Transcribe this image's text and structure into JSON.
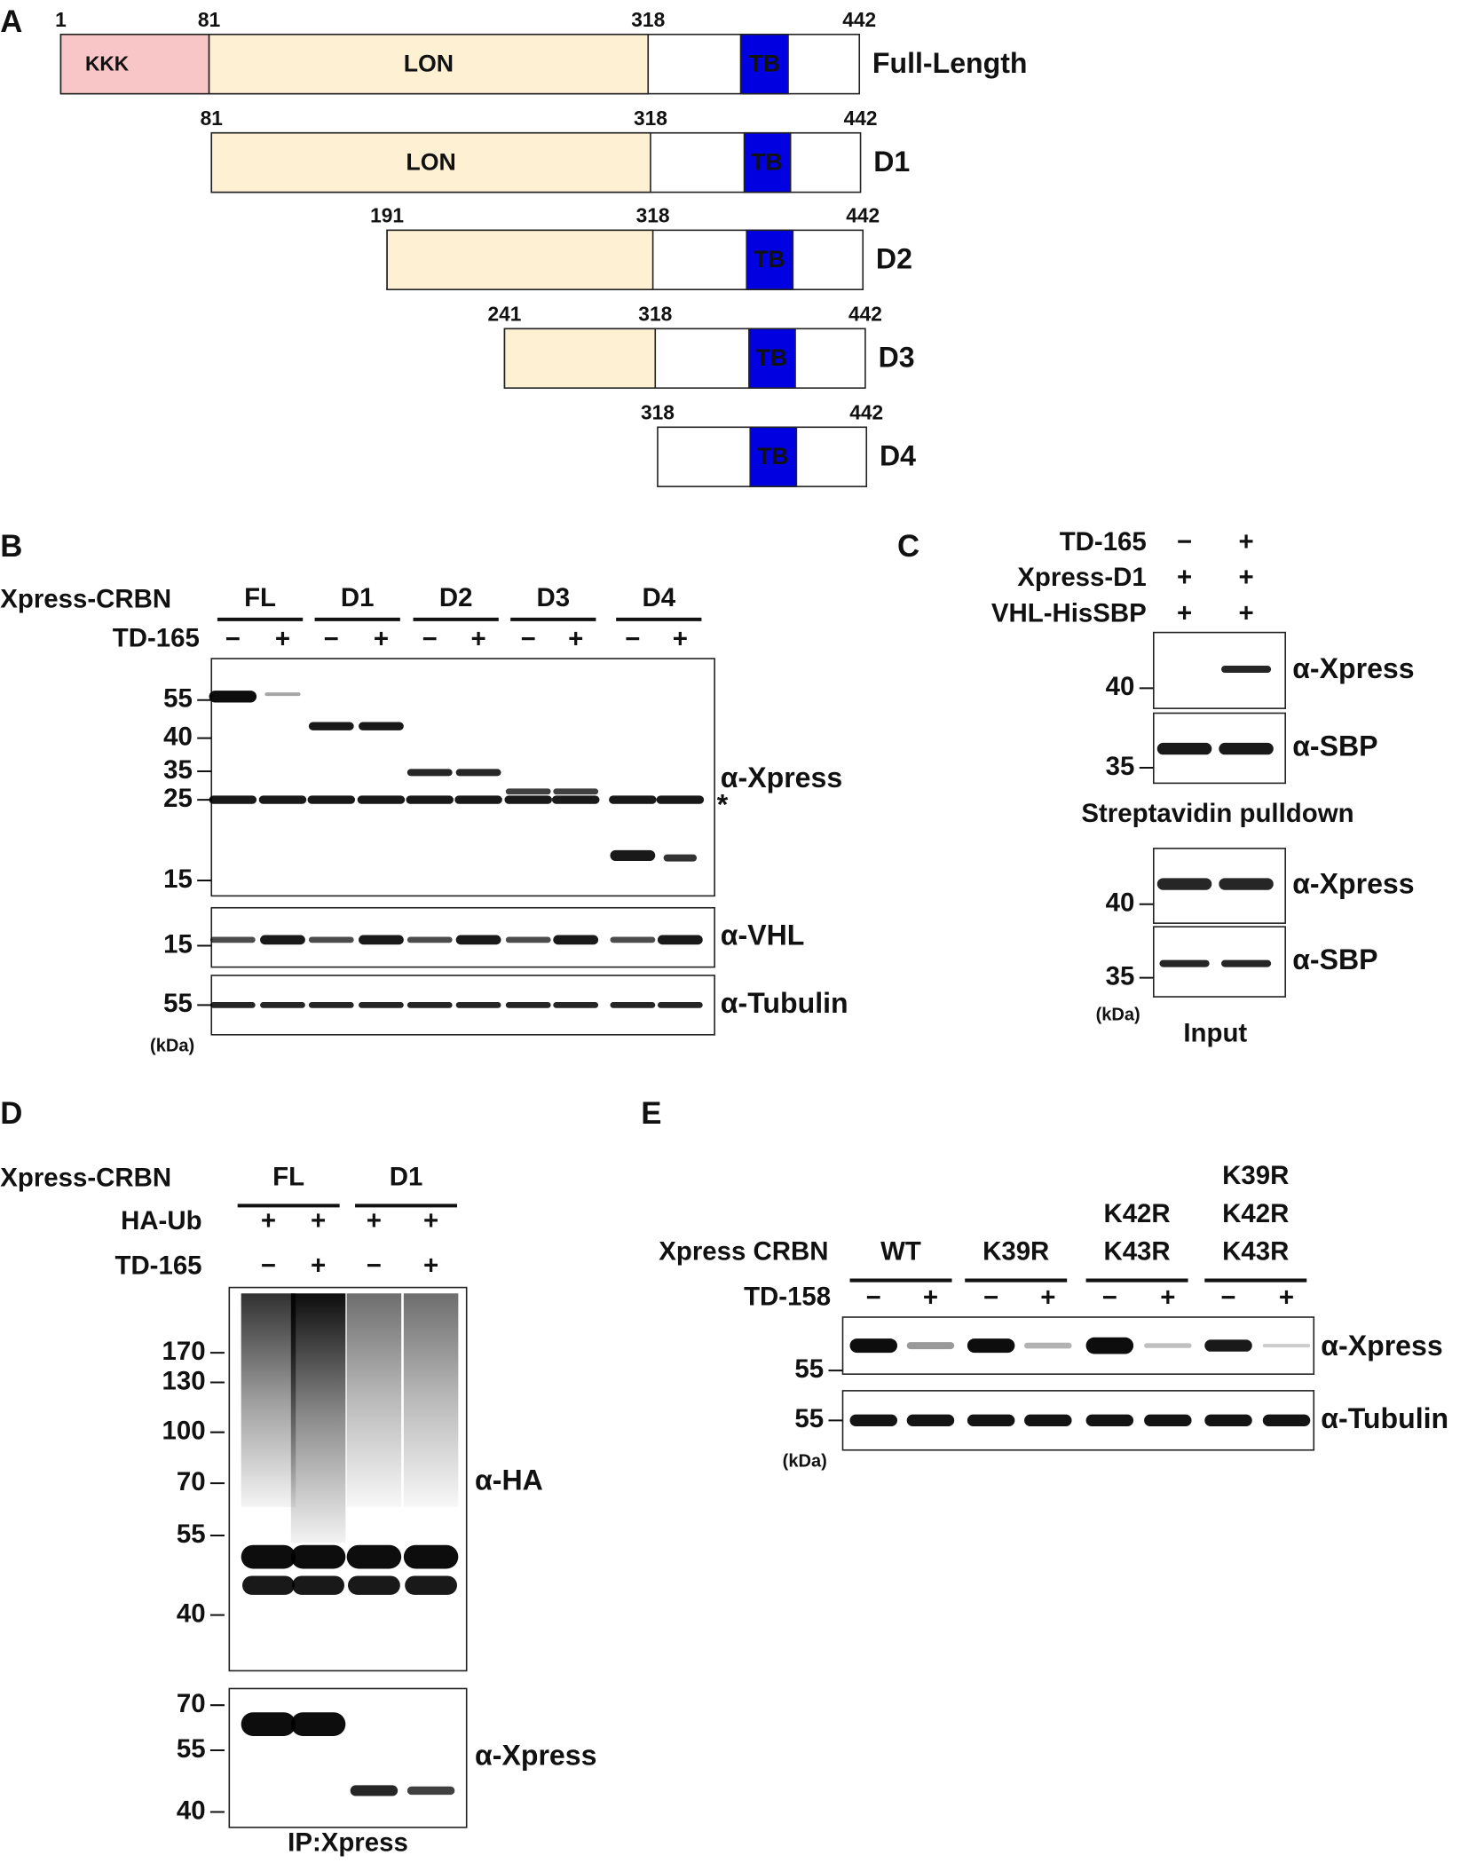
{
  "panel_a": {
    "label": "A",
    "constructs": [
      {
        "name": "Full-Length",
        "positions": [
          1,
          81,
          318,
          442
        ],
        "domains": [
          "KKK",
          "LON",
          "TB"
        ]
      },
      {
        "name": "D1",
        "positions": [
          81,
          318,
          442
        ],
        "domains": [
          "LON",
          "TB"
        ]
      },
      {
        "name": "D2",
        "positions": [
          191,
          318,
          442
        ],
        "domains": [
          "TB"
        ]
      },
      {
        "name": "D3",
        "positions": [
          241,
          318,
          442
        ],
        "domains": [
          "TB"
        ]
      },
      {
        "name": "D4",
        "positions": [
          318,
          442
        ],
        "domains": [
          "TB"
        ]
      }
    ]
  },
  "panel_b": {
    "label": "B",
    "construct_label": "Xpress-CRBN",
    "groups": [
      "FL",
      "D1",
      "D2",
      "D3",
      "D4"
    ],
    "treatment_label": "TD-165",
    "treatment": [
      "−",
      "+",
      "−",
      "+",
      "−",
      "+",
      "−",
      "+",
      "−",
      "+"
    ],
    "blots": [
      {
        "antibody": "α-Xpress",
        "markers": [
          55,
          40,
          35,
          25,
          15
        ],
        "note": "*"
      },
      {
        "antibody": "α-VHL",
        "markers": [
          15
        ]
      },
      {
        "antibody": "α-Tubulin",
        "markers": [
          55
        ]
      }
    ],
    "unit": "(kDa)"
  },
  "panel_c": {
    "label": "C",
    "conditions": [
      {
        "label": "TD-165",
        "signs": [
          "−",
          "+"
        ]
      },
      {
        "label": "Xpress-D1",
        "signs": [
          "+",
          "+"
        ]
      },
      {
        "label": "VHL-HisSBP",
        "signs": [
          "+",
          "+"
        ]
      }
    ],
    "pulldown": {
      "blots": [
        {
          "antibody": "α-Xpress",
          "marker": 40
        },
        {
          "antibody": "α-SBP",
          "marker": 35
        }
      ],
      "caption": "Streptavidin pulldown"
    },
    "input": {
      "blots": [
        {
          "antibody": "α-Xpress",
          "marker": 40
        },
        {
          "antibody": "α-SBP",
          "marker": 35
        }
      ],
      "caption": "Input"
    },
    "unit": "(kDa)"
  },
  "panel_d": {
    "label": "D",
    "construct_label": "Xpress-CRBN",
    "groups": [
      "FL",
      "D1"
    ],
    "conditions": [
      {
        "label": "HA-Ub",
        "signs": [
          "+",
          "+",
          "+",
          "+"
        ]
      },
      {
        "label": "TD-165",
        "signs": [
          "−",
          "+",
          "−",
          "+"
        ]
      }
    ],
    "blots": [
      {
        "antibody": "α-HA",
        "markers": [
          170,
          130,
          100,
          70,
          55,
          40
        ]
      },
      {
        "antibody": "α-Xpress",
        "markers": [
          70,
          55,
          40
        ]
      }
    ],
    "caption": "IP:Xpress"
  },
  "panel_e": {
    "label": "E",
    "construct_label": "Xpress CRBN",
    "groups": [
      [
        "WT"
      ],
      [
        "K39R"
      ],
      [
        "K42R",
        "K43R"
      ],
      [
        "K39R",
        "K42R",
        "K43R"
      ]
    ],
    "treatment_label": "TD-158",
    "treatment": [
      "−",
      "+",
      "−",
      "+",
      "−",
      "+",
      "−",
      "+"
    ],
    "blots": [
      {
        "antibody": "α-Xpress",
        "marker": 55
      },
      {
        "antibody": "α-Tubulin",
        "marker": 55
      }
    ],
    "unit": "(kDa)"
  }
}
